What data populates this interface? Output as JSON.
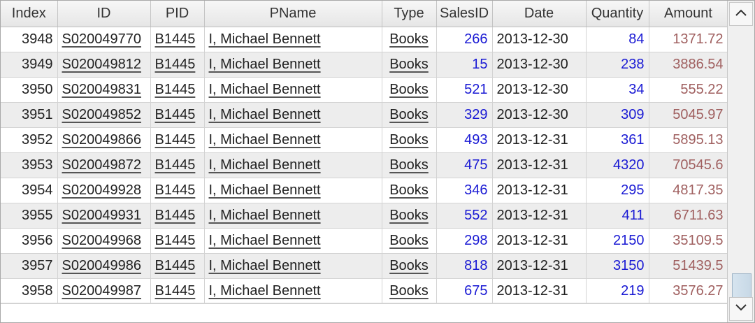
{
  "table": {
    "columns": [
      "Index",
      "ID",
      "PID",
      "PName",
      "Type",
      "SalesID",
      "Date",
      "Quantity",
      "Amount"
    ],
    "rows": [
      [
        "3948",
        "S020049770",
        "B1445",
        "I, Michael Bennett",
        "Books",
        "266",
        "2013-12-30",
        "84",
        "1371.72"
      ],
      [
        "3949",
        "S020049812",
        "B1445",
        "I, Michael Bennett",
        "Books",
        "15",
        "2013-12-30",
        "238",
        "3886.54"
      ],
      [
        "3950",
        "S020049831",
        "B1445",
        "I, Michael Bennett",
        "Books",
        "521",
        "2013-12-30",
        "34",
        "555.22"
      ],
      [
        "3951",
        "S020049852",
        "B1445",
        "I, Michael Bennett",
        "Books",
        "329",
        "2013-12-30",
        "309",
        "5045.97"
      ],
      [
        "3952",
        "S020049866",
        "B1445",
        "I, Michael Bennett",
        "Books",
        "493",
        "2013-12-31",
        "361",
        "5895.13"
      ],
      [
        "3953",
        "S020049872",
        "B1445",
        "I, Michael Bennett",
        "Books",
        "475",
        "2013-12-31",
        "4320",
        "70545.6"
      ],
      [
        "3954",
        "S020049928",
        "B1445",
        "I, Michael Bennett",
        "Books",
        "346",
        "2013-12-31",
        "295",
        "4817.35"
      ],
      [
        "3955",
        "S020049931",
        "B1445",
        "I, Michael Bennett",
        "Books",
        "552",
        "2013-12-31",
        "411",
        "6711.63"
      ],
      [
        "3956",
        "S020049968",
        "B1445",
        "I, Michael Bennett",
        "Books",
        "298",
        "2013-12-31",
        "2150",
        "35109.5"
      ],
      [
        "3957",
        "S020049986",
        "B1445",
        "I, Michael Bennett",
        "Books",
        "818",
        "2013-12-31",
        "3150",
        "51439.5"
      ],
      [
        "3958",
        "S020049987",
        "B1445",
        "I, Michael Bennett",
        "Books",
        "675",
        "2013-12-31",
        "219",
        "3576.27"
      ]
    ]
  },
  "scrollbar": {
    "up_icon": "chevron-up-icon",
    "down_icon": "chevron-down-icon",
    "position_fraction": 0.98
  },
  "colors": {
    "number_blue": "#1a1ad4",
    "amount_brown": "#a06060",
    "alt_row": "#ededed"
  }
}
